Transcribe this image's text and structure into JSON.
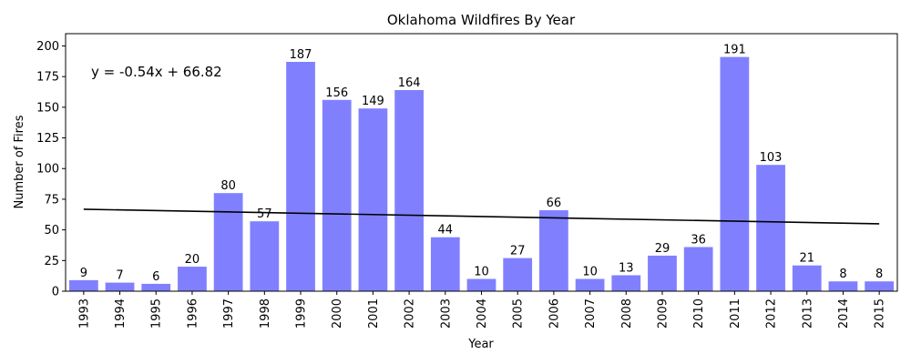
{
  "chart_data": {
    "type": "bar",
    "title": "Oklahoma Wildfires By Year",
    "xlabel": "Year",
    "ylabel": "Number of Fires",
    "categories": [
      "1993",
      "1994",
      "1995",
      "1996",
      "1997",
      "1998",
      "1999",
      "2000",
      "2001",
      "2002",
      "2003",
      "2004",
      "2005",
      "2006",
      "2007",
      "2008",
      "2009",
      "2010",
      "2011",
      "2012",
      "2013",
      "2014",
      "2015"
    ],
    "values": [
      9,
      7,
      6,
      20,
      80,
      57,
      187,
      156,
      149,
      164,
      44,
      10,
      27,
      66,
      10,
      13,
      29,
      36,
      191,
      103,
      21,
      8,
      8
    ],
    "ylim": [
      0,
      210
    ],
    "yticks": [
      0,
      25,
      50,
      75,
      100,
      125,
      150,
      175,
      200
    ],
    "trendline": {
      "slope": -0.54,
      "intercept": 66.82,
      "equation": "y = -0.54x + 66.82"
    },
    "bar_color": "#8080ff",
    "trend_color": "#000000",
    "grid": false,
    "legend": "none"
  }
}
